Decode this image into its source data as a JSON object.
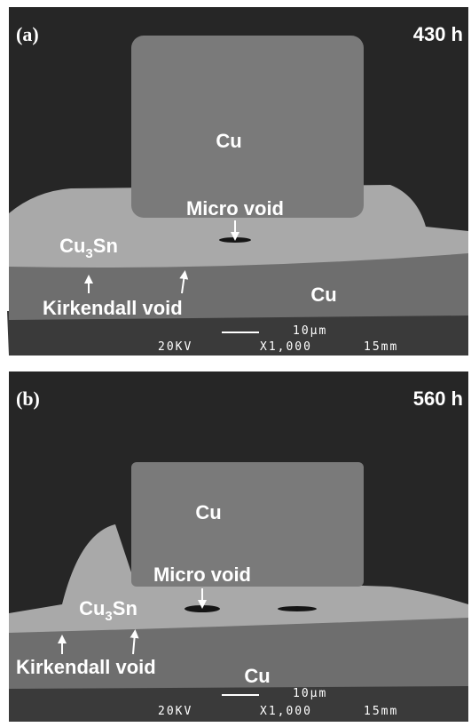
{
  "panels": [
    {
      "label": "(a)",
      "time": "430 h",
      "top_metal": "Cu",
      "micro_void": "Micro void",
      "imc": [
        "Cu",
        "3",
        "Sn"
      ],
      "kirkendall": "Kirkendall void",
      "bottom_metal": "Cu",
      "scale": "10µm",
      "voltage": "20KV",
      "magnification": "X1,000",
      "distance": "15mm"
    },
    {
      "label": "(b)",
      "time": "560 h",
      "top_metal": "Cu",
      "micro_void": "Micro void",
      "imc": [
        "Cu",
        "3",
        "Sn"
      ],
      "kirkendall": "Kirkendall void",
      "bottom_metal": "Cu",
      "scale": "10µm",
      "voltage": "20KV",
      "magnification": "X1,000",
      "distance": "15mm"
    }
  ]
}
